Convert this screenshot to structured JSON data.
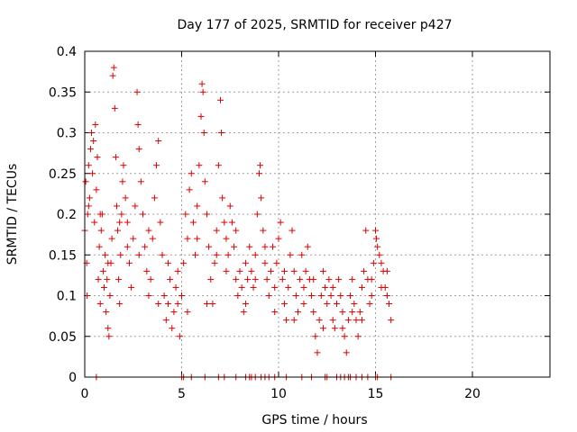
{
  "chart_data": {
    "type": "scatter",
    "title": "Day 177 of 2025, SRMTID for receiver p427",
    "xlabel": "GPS time / hours",
    "ylabel": "SRMTID / TECUs",
    "xlim": [
      0,
      24
    ],
    "ylim": [
      0,
      0.4
    ],
    "xticks": [
      0,
      5,
      10,
      15,
      20
    ],
    "yticks": [
      0,
      0.05,
      0.1,
      0.15,
      0.2,
      0.25,
      0.3,
      0.35,
      0.4
    ],
    "xtick_labels": [
      "0",
      "5",
      "10",
      "15",
      "20"
    ],
    "ytick_labels": [
      "0",
      "0.05",
      "0.1",
      "0.15",
      "0.2",
      "0.25",
      "0.3",
      "0.35",
      "0.4"
    ],
    "grid": true,
    "marker": "+",
    "color": "#dd0000",
    "series": [
      {
        "name": "SRMTID",
        "points": [
          [
            0.0,
            0.18
          ],
          [
            0.05,
            0.24
          ],
          [
            0.1,
            0.14
          ],
          [
            0.12,
            0.1
          ],
          [
            0.15,
            0.2
          ],
          [
            0.2,
            0.26
          ],
          [
            0.25,
            0.22
          ],
          [
            0.3,
            0.28
          ],
          [
            0.35,
            0.3
          ],
          [
            0.4,
            0.25
          ],
          [
            0.45,
            0.29
          ],
          [
            0.5,
            0.19
          ],
          [
            0.55,
            0.31
          ],
          [
            0.6,
            0.23
          ],
          [
            0.65,
            0.27
          ],
          [
            0.7,
            0.12
          ],
          [
            0.75,
            0.16
          ],
          [
            0.8,
            0.09
          ],
          [
            0.85,
            0.18
          ],
          [
            0.9,
            0.2
          ],
          [
            0.95,
            0.13
          ],
          [
            1.0,
            0.11
          ],
          [
            1.05,
            0.15
          ],
          [
            1.1,
            0.08
          ],
          [
            1.15,
            0.12
          ],
          [
            1.2,
            0.06
          ],
          [
            1.25,
            0.05
          ],
          [
            1.3,
            0.1
          ],
          [
            1.35,
            0.14
          ],
          [
            1.4,
            0.17
          ],
          [
            1.45,
            0.37
          ],
          [
            1.5,
            0.38
          ],
          [
            1.55,
            0.33
          ],
          [
            1.6,
            0.27
          ],
          [
            1.65,
            0.21
          ],
          [
            1.7,
            0.18
          ],
          [
            1.75,
            0.12
          ],
          [
            1.8,
            0.09
          ],
          [
            1.85,
            0.15
          ],
          [
            1.9,
            0.2
          ],
          [
            1.95,
            0.24
          ],
          [
            2.0,
            0.26
          ],
          [
            2.1,
            0.22
          ],
          [
            2.2,
            0.19
          ],
          [
            2.3,
            0.14
          ],
          [
            2.4,
            0.11
          ],
          [
            2.5,
            0.17
          ],
          [
            2.6,
            0.21
          ],
          [
            2.7,
            0.35
          ],
          [
            2.75,
            0.31
          ],
          [
            2.8,
            0.28
          ],
          [
            2.9,
            0.24
          ],
          [
            3.0,
            0.2
          ],
          [
            3.1,
            0.16
          ],
          [
            3.2,
            0.13
          ],
          [
            3.3,
            0.1
          ],
          [
            3.4,
            0.12
          ],
          [
            3.5,
            0.17
          ],
          [
            3.6,
            0.22
          ],
          [
            3.7,
            0.26
          ],
          [
            3.8,
            0.29
          ],
          [
            3.9,
            0.19
          ],
          [
            4.0,
            0.15
          ],
          [
            4.1,
            0.1
          ],
          [
            4.2,
            0.07
          ],
          [
            4.3,
            0.09
          ],
          [
            4.4,
            0.12
          ],
          [
            4.5,
            0.06
          ],
          [
            4.6,
            0.08
          ],
          [
            4.7,
            0.11
          ],
          [
            4.8,
            0.13
          ],
          [
            4.9,
            0.05
          ],
          [
            5.0,
            0.1
          ],
          [
            5.1,
            0.14
          ],
          [
            5.2,
            0.2
          ],
          [
            5.3,
            0.17
          ],
          [
            5.4,
            0.23
          ],
          [
            5.5,
            0.25
          ],
          [
            5.6,
            0.19
          ],
          [
            5.7,
            0.15
          ],
          [
            5.8,
            0.21
          ],
          [
            5.9,
            0.26
          ],
          [
            6.0,
            0.32
          ],
          [
            6.05,
            0.36
          ],
          [
            6.1,
            0.35
          ],
          [
            6.15,
            0.3
          ],
          [
            6.2,
            0.24
          ],
          [
            6.3,
            0.2
          ],
          [
            6.4,
            0.16
          ],
          [
            6.5,
            0.12
          ],
          [
            6.6,
            0.09
          ],
          [
            6.7,
            0.14
          ],
          [
            6.8,
            0.18
          ],
          [
            6.9,
            0.26
          ],
          [
            7.0,
            0.34
          ],
          [
            7.05,
            0.3
          ],
          [
            7.1,
            0.22
          ],
          [
            7.2,
            0.19
          ],
          [
            7.3,
            0.17
          ],
          [
            7.4,
            0.15
          ],
          [
            7.5,
            0.21
          ],
          [
            7.6,
            0.19
          ],
          [
            7.7,
            0.16
          ],
          [
            7.8,
            0.12
          ],
          [
            7.9,
            0.1
          ],
          [
            8.0,
            0.13
          ],
          [
            8.1,
            0.11
          ],
          [
            8.2,
            0.08
          ],
          [
            8.3,
            0.14
          ],
          [
            8.4,
            0.12
          ],
          [
            8.5,
            0.16
          ],
          [
            8.6,
            0.13
          ],
          [
            8.7,
            0.11
          ],
          [
            8.8,
            0.15
          ],
          [
            8.9,
            0.2
          ],
          [
            9.0,
            0.25
          ],
          [
            9.05,
            0.26
          ],
          [
            9.1,
            0.22
          ],
          [
            9.2,
            0.18
          ],
          [
            9.3,
            0.14
          ],
          [
            9.4,
            0.12
          ],
          [
            9.5,
            0.1
          ],
          [
            9.6,
            0.13
          ],
          [
            9.7,
            0.16
          ],
          [
            9.8,
            0.11
          ],
          [
            9.9,
            0.14
          ],
          [
            10.0,
            0.17
          ],
          [
            10.1,
            0.19
          ],
          [
            10.2,
            0.12
          ],
          [
            10.3,
            0.09
          ],
          [
            10.4,
            0.07
          ],
          [
            10.5,
            0.11
          ],
          [
            10.6,
            0.15
          ],
          [
            10.7,
            0.18
          ],
          [
            10.8,
            0.13
          ],
          [
            10.9,
            0.1
          ],
          [
            11.0,
            0.08
          ],
          [
            11.1,
            0.12
          ],
          [
            11.2,
            0.15
          ],
          [
            11.3,
            0.11
          ],
          [
            11.4,
            0.13
          ],
          [
            11.5,
            0.16
          ],
          [
            11.6,
            0.12
          ],
          [
            11.7,
            0.1
          ],
          [
            11.8,
            0.08
          ],
          [
            11.9,
            0.05
          ],
          [
            12.0,
            0.03
          ],
          [
            12.1,
            0.07
          ],
          [
            12.2,
            0.1
          ],
          [
            12.3,
            0.13
          ],
          [
            12.4,
            0.11
          ],
          [
            12.5,
            0.09
          ],
          [
            12.6,
            0.12
          ],
          [
            12.7,
            0.1
          ],
          [
            12.8,
            0.07
          ],
          [
            12.9,
            0.06
          ],
          [
            13.0,
            0.09
          ],
          [
            13.1,
            0.12
          ],
          [
            13.2,
            0.1
          ],
          [
            13.3,
            0.08
          ],
          [
            13.4,
            0.05
          ],
          [
            13.5,
            0.03
          ],
          [
            13.6,
            0.07
          ],
          [
            13.7,
            0.1
          ],
          [
            13.8,
            0.12
          ],
          [
            13.9,
            0.09
          ],
          [
            14.0,
            0.07
          ],
          [
            14.1,
            0.05
          ],
          [
            14.2,
            0.08
          ],
          [
            14.3,
            0.11
          ],
          [
            14.4,
            0.13
          ],
          [
            14.5,
            0.18
          ],
          [
            14.6,
            0.12
          ],
          [
            14.7,
            0.09
          ],
          [
            14.8,
            0.1
          ],
          [
            14.9,
            0.14
          ],
          [
            15.0,
            0.18
          ],
          [
            15.05,
            0.17
          ],
          [
            15.1,
            0.16
          ],
          [
            15.2,
            0.15
          ],
          [
            15.3,
            0.14
          ],
          [
            15.4,
            0.13
          ],
          [
            15.5,
            0.11
          ],
          [
            15.6,
            0.1
          ],
          [
            15.7,
            0.09
          ],
          [
            15.8,
            0.07
          ],
          [
            0.2,
            0.21
          ],
          [
            0.8,
            0.2
          ],
          [
            1.2,
            0.14
          ],
          [
            1.8,
            0.19
          ],
          [
            2.2,
            0.16
          ],
          [
            2.8,
            0.15
          ],
          [
            3.3,
            0.18
          ],
          [
            3.8,
            0.09
          ],
          [
            4.3,
            0.14
          ],
          [
            4.8,
            0.09
          ],
          [
            5.3,
            0.08
          ],
          [
            5.8,
            0.17
          ],
          [
            6.3,
            0.09
          ],
          [
            6.8,
            0.15
          ],
          [
            7.3,
            0.13
          ],
          [
            7.8,
            0.18
          ],
          [
            8.3,
            0.09
          ],
          [
            8.8,
            0.12
          ],
          [
            9.3,
            0.16
          ],
          [
            9.8,
            0.08
          ],
          [
            10.3,
            0.13
          ],
          [
            10.8,
            0.07
          ],
          [
            11.3,
            0.09
          ],
          [
            11.8,
            0.12
          ],
          [
            12.3,
            0.06
          ],
          [
            12.8,
            0.11
          ],
          [
            13.3,
            0.06
          ],
          [
            13.8,
            0.08
          ],
          [
            14.3,
            0.07
          ],
          [
            14.8,
            0.12
          ],
          [
            15.3,
            0.11
          ],
          [
            15.6,
            0.13
          ],
          [
            0.6,
            0.0
          ],
          [
            5.0,
            0.0
          ],
          [
            5.1,
            0.0
          ],
          [
            5.5,
            0.0
          ],
          [
            6.2,
            0.0
          ],
          [
            6.9,
            0.0
          ],
          [
            7.2,
            0.0
          ],
          [
            7.8,
            0.0
          ],
          [
            8.3,
            0.0
          ],
          [
            8.5,
            0.0
          ],
          [
            8.6,
            0.0
          ],
          [
            8.8,
            0.0
          ],
          [
            9.1,
            0.0
          ],
          [
            9.3,
            0.0
          ],
          [
            9.5,
            0.0
          ],
          [
            9.8,
            0.0
          ],
          [
            10.4,
            0.0
          ],
          [
            11.2,
            0.0
          ],
          [
            11.7,
            0.0
          ],
          [
            12.4,
            0.0
          ],
          [
            12.5,
            0.0
          ],
          [
            13.0,
            0.0
          ],
          [
            13.2,
            0.0
          ],
          [
            13.4,
            0.0
          ],
          [
            13.6,
            0.0
          ],
          [
            13.7,
            0.0
          ],
          [
            14.0,
            0.0
          ],
          [
            14.3,
            0.0
          ],
          [
            14.6,
            0.0
          ],
          [
            15.0,
            0.0
          ],
          [
            15.1,
            0.0
          ],
          [
            15.8,
            0.0
          ]
        ]
      }
    ]
  }
}
